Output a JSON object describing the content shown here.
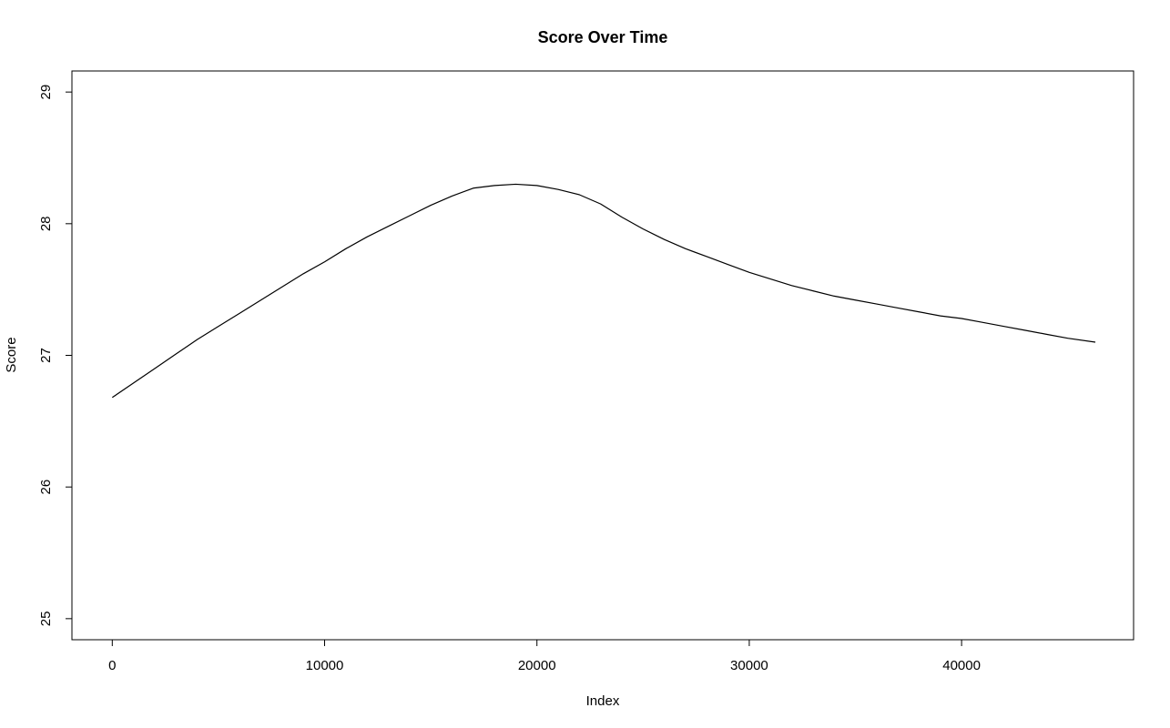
{
  "chart_data": {
    "type": "line",
    "title": "Score Over Time",
    "xlabel": "Index",
    "ylabel": "Score",
    "xlim": [
      -1900,
      48100
    ],
    "ylim": [
      24.84,
      29.16
    ],
    "xticks": [
      0,
      10000,
      20000,
      30000,
      40000
    ],
    "yticks": [
      25,
      26,
      27,
      28,
      29
    ],
    "grid": false,
    "legend": "none",
    "line_color": "#000000",
    "series": [
      {
        "x": [
          0,
          1000,
          2000,
          3000,
          4000,
          5000,
          6000,
          7000,
          8000,
          9000,
          10000,
          11000,
          12000,
          13000,
          14000,
          15000,
          16000,
          17000,
          18000,
          19000,
          20000,
          21000,
          22000,
          23000,
          24000,
          25000,
          26000,
          27000,
          28000,
          29000,
          30000,
          31000,
          32000,
          33000,
          34000,
          35000,
          36000,
          37000,
          38000,
          39000,
          40000,
          41000,
          42000,
          43000,
          44000,
          45000,
          46300
        ],
        "values": [
          26.68,
          26.79,
          26.9,
          27.01,
          27.12,
          27.22,
          27.32,
          27.42,
          27.52,
          27.62,
          27.71,
          27.81,
          27.9,
          27.98,
          28.06,
          28.14,
          28.21,
          28.27,
          28.29,
          28.3,
          28.29,
          28.26,
          28.22,
          28.15,
          28.05,
          27.96,
          27.88,
          27.81,
          27.75,
          27.69,
          27.63,
          27.58,
          27.53,
          27.49,
          27.45,
          27.42,
          27.39,
          27.36,
          27.33,
          27.3,
          27.28,
          27.25,
          27.22,
          27.19,
          27.16,
          27.13,
          27.1
        ]
      }
    ]
  }
}
